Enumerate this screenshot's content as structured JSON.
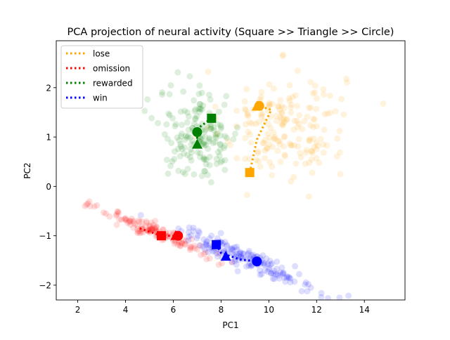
{
  "chart_data": {
    "type": "scatter",
    "title": "PCA projection of neural activity (Square >> Triangle >> Circle)",
    "xlabel": "PC1",
    "ylabel": "PC2",
    "xlim": [
      1.1,
      15.7
    ],
    "ylim": [
      -2.3,
      2.95
    ],
    "xticks": [
      2,
      4,
      6,
      8,
      10,
      12,
      14
    ],
    "yticks": [
      -2,
      -1,
      0,
      1,
      2
    ],
    "legend_position": "top-left",
    "grid": false,
    "series": [
      {
        "name": "lose",
        "color": "#ffa500",
        "cluster": {
          "center": [
            10.6,
            1.25
          ],
          "spread": [
            1.3,
            0.55
          ],
          "n": 190,
          "extent": "x 8.6–15.0, y -0.45–2.65"
        },
        "trajectory": {
          "square": [
            9.2,
            0.28
          ],
          "triangle": [
            9.5,
            1.62
          ],
          "circle": [
            9.6,
            1.63
          ],
          "path": [
            [
              9.2,
              0.28
            ],
            [
              9.5,
              0.95
            ],
            [
              10.1,
              1.55
            ],
            [
              9.6,
              1.63
            ]
          ]
        }
      },
      {
        "name": "omission",
        "color": "#ff0000",
        "cluster": {
          "center": [
            5.4,
            -0.95
          ],
          "slope": -0.2,
          "spread_along": 1.2,
          "spread_across": 0.08,
          "n": 140,
          "extent": "x 1.7–8.0"
        },
        "trajectory": {
          "square": [
            5.5,
            -1.0
          ],
          "triangle": [
            6.1,
            -1.0
          ],
          "circle": [
            6.2,
            -1.0
          ],
          "path": [
            [
              4.6,
              -0.85
            ],
            [
              5.5,
              -1.0
            ],
            [
              6.1,
              -1.0
            ],
            [
              6.2,
              -1.0
            ]
          ]
        }
      },
      {
        "name": "rewarded",
        "color": "#008000",
        "cluster": {
          "center": [
            7.1,
            1.05
          ],
          "spread": [
            0.85,
            0.45
          ],
          "n": 170,
          "extent": "x 5.2–9.0, y -0.1–2.0"
        },
        "trajectory": {
          "square": [
            7.6,
            1.38
          ],
          "triangle": [
            7.0,
            0.85
          ],
          "circle": [
            7.0,
            1.1
          ],
          "path": [
            [
              7.6,
              1.38
            ],
            [
              7.1,
              1.2
            ],
            [
              7.0,
              1.1
            ],
            [
              7.0,
              0.85
            ]
          ]
        }
      },
      {
        "name": "win",
        "color": "#0000ff",
        "cluster": {
          "center": [
            9.0,
            -1.45
          ],
          "slope": -0.2,
          "spread_along": 1.5,
          "spread_across": 0.1,
          "n": 170,
          "extent": "x 5.6–13.5"
        },
        "trajectory": {
          "square": [
            7.8,
            -1.18
          ],
          "triangle": [
            8.2,
            -1.42
          ],
          "circle": [
            9.5,
            -1.52
          ],
          "path": [
            [
              7.8,
              -1.18
            ],
            [
              8.0,
              -1.35
            ],
            [
              8.8,
              -1.48
            ],
            [
              9.5,
              -1.52
            ]
          ]
        }
      }
    ]
  }
}
